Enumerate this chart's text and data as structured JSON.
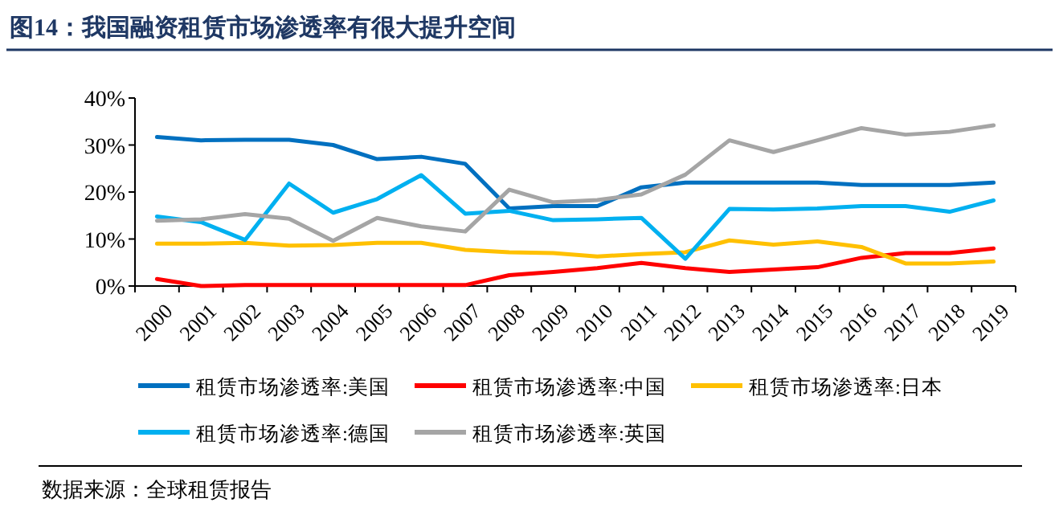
{
  "chart_data": {
    "type": "line",
    "title": "图14：我国融资租赁市场渗透率有很大提升空间",
    "categories": [
      "2000",
      "2001",
      "2002",
      "2003",
      "2004",
      "2005",
      "2006",
      "2007",
      "2008",
      "2009",
      "2010",
      "2011",
      "2012",
      "2013",
      "2014",
      "2015",
      "2016",
      "2017",
      "2018",
      "2019"
    ],
    "series": [
      {
        "name": "租赁市场渗透率:美国",
        "color": "#0070c0",
        "values": [
          31.7,
          31,
          31.1,
          31.1,
          30,
          27,
          27.5,
          26,
          16.5,
          17,
          17,
          21,
          22,
          22,
          22,
          22,
          21.5,
          21.5,
          21.5,
          22
        ]
      },
      {
        "name": "租赁市场渗透率:中国",
        "color": "#ff0000",
        "values": [
          1.5,
          0,
          0.2,
          0.2,
          0.2,
          0.2,
          0.2,
          0.2,
          2.3,
          3,
          3.8,
          4.9,
          3.8,
          3,
          3.5,
          4,
          6,
          7,
          7,
          8
        ]
      },
      {
        "name": "租赁市场渗透率:日本",
        "color": "#ffc000",
        "values": [
          9,
          9,
          9.2,
          8.6,
          8.7,
          9.2,
          9.2,
          7.7,
          7.2,
          7,
          6.3,
          6.8,
          7.2,
          9.7,
          8.8,
          9.5,
          8.3,
          4.8,
          4.8,
          5.2
        ]
      },
      {
        "name": "租赁市场渗透率:德国",
        "color": "#00b0f0",
        "values": [
          14.8,
          13.6,
          9.8,
          21.8,
          15.6,
          18.5,
          23.6,
          15.4,
          16,
          14,
          14.2,
          14.5,
          5.8,
          16.4,
          16.3,
          16.5,
          17,
          17,
          15.8,
          18.2
        ]
      },
      {
        "name": "租赁市场渗透率:英国",
        "color": "#a5a5a5",
        "values": [
          13.9,
          14.2,
          15.3,
          14.3,
          9.6,
          14.5,
          12.7,
          11.6,
          20.5,
          17.8,
          18.3,
          19.5,
          23.7,
          31,
          28.5,
          31,
          33.6,
          32.2,
          32.8,
          34.2
        ]
      }
    ],
    "ylim": [
      0,
      40
    ],
    "yticks": [
      {
        "value": 0,
        "label": "0%"
      },
      {
        "value": 10,
        "label": "10%"
      },
      {
        "value": 20,
        "label": "20%"
      },
      {
        "value": 30,
        "label": "30%"
      },
      {
        "value": 40,
        "label": "40%"
      }
    ],
    "grid": false,
    "legend": "bottom",
    "marker": "none",
    "line_style": "solid",
    "annotations": [
      "数据来源：全球租赁报告"
    ]
  }
}
